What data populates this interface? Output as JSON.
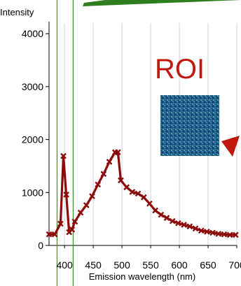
{
  "chart_data": {
    "type": "line",
    "xlabel": "Emission wavelength (nm)",
    "ylabel": "Intensity",
    "xlim": [
      373,
      700
    ],
    "ylim": [
      0,
      4200
    ],
    "x_ticks": [
      400,
      450,
      500,
      550,
      600,
      650,
      700
    ],
    "y_ticks": [
      0,
      1000,
      2000,
      3000,
      4000
    ],
    "x_tick_labels": [
      "400",
      "450",
      "500",
      "550",
      "600",
      "650",
      "700"
    ],
    "y_tick_labels": [
      "0",
      "1000",
      "2000",
      "3000",
      "4000"
    ],
    "grid": true,
    "series": [
      {
        "color": "#8b0a0a",
        "x": [
          373,
          383,
          393,
          398,
          403,
          408,
          413,
          418,
          428,
          438,
          448,
          458,
          468,
          478,
          488,
          493,
          498,
          508,
          518,
          528,
          538,
          548,
          558,
          568,
          578,
          588,
          598,
          608,
          618,
          628,
          638,
          648,
          658,
          668,
          678,
          688,
          698
        ],
        "y": [
          210,
          210,
          410,
          1690,
          960,
          250,
          300,
          450,
          620,
          760,
          930,
          1150,
          1350,
          1580,
          1760,
          1760,
          1230,
          1100,
          1010,
          980,
          910,
          790,
          660,
          580,
          520,
          460,
          420,
          390,
          360,
          320,
          280,
          260,
          240,
          220,
          210,
          200,
          200
        ]
      }
    ],
    "annotations": {
      "roi_label": "ROI",
      "roi_region_nm": [
        387,
        415
      ],
      "roi_line_color": "#2a9a2a",
      "arrow_color": "#c0180f",
      "top_arrow_color": "#2e7d1f",
      "roi_image_color": "#1e5a86"
    }
  }
}
